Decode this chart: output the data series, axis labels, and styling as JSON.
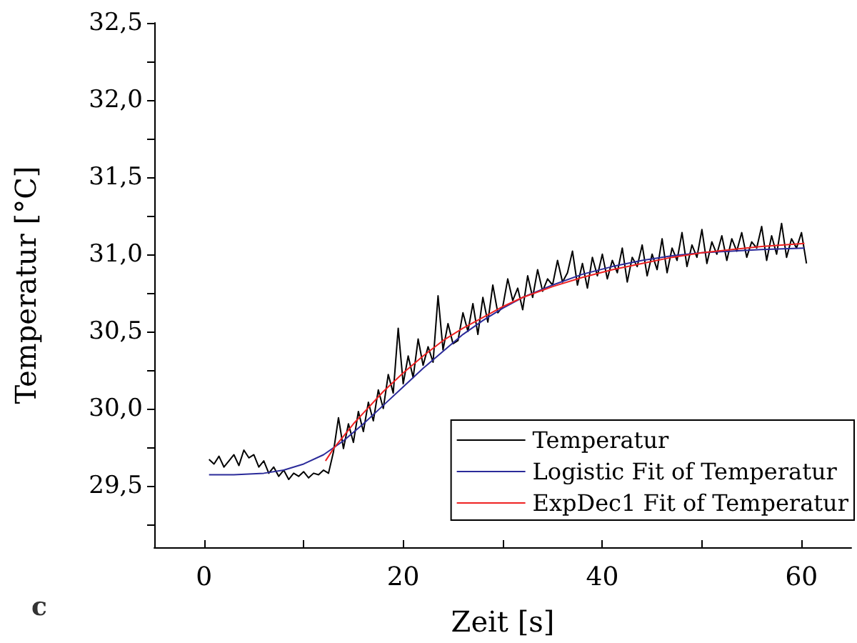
{
  "chart_data": {
    "type": "line",
    "xlabel": "Zeit [s]",
    "ylabel": "Temperatur [°C]",
    "annotations": [
      "c"
    ],
    "xlim": [
      -5,
      65
    ],
    "xticks": [
      0,
      {
        "value": 10,
        "label": null
      },
      20,
      {
        "value": 30,
        "label": null
      },
      40,
      {
        "value": 50,
        "label": null
      },
      60
    ],
    "ylim": [
      29.1,
      32.5
    ],
    "yticks": [
      {
        "value": 29.25,
        "label": null
      },
      {
        "value": 29.5,
        "label": "29,5"
      },
      {
        "value": 29.75,
        "label": null
      },
      {
        "value": 30.0,
        "label": "30,0"
      },
      {
        "value": 30.25,
        "label": null
      },
      {
        "value": 30.5,
        "label": "30,5"
      },
      {
        "value": 30.75,
        "label": null
      },
      {
        "value": 31.0,
        "label": "31,0"
      },
      {
        "value": 31.25,
        "label": null
      },
      {
        "value": 31.5,
        "label": "31,5"
      },
      {
        "value": 31.75,
        "label": null
      },
      {
        "value": 32.0,
        "label": "32,0"
      },
      {
        "value": 32.25,
        "label": null
      },
      {
        "value": 32.5,
        "label": "32,5"
      }
    ],
    "grid": false,
    "legend": "bottom right",
    "marker": "none",
    "line_style": "solid",
    "series": [
      {
        "name": "Temperatur",
        "color": "#000000",
        "x": [
          0.5,
          1,
          1.5,
          2,
          2.5,
          3,
          3.5,
          4,
          4.5,
          5,
          5.5,
          6,
          6.5,
          7,
          7.5,
          8,
          8.5,
          9,
          9.5,
          10,
          10.5,
          11,
          11.5,
          12,
          12.5,
          13,
          13.5,
          14,
          14.5,
          15,
          15.5,
          16,
          16.5,
          17,
          17.5,
          18,
          18.5,
          19,
          19.5,
          20,
          20.5,
          21,
          21.5,
          22,
          22.5,
          23,
          23.5,
          24,
          24.5,
          25,
          25.5,
          26,
          26.5,
          27,
          27.5,
          28,
          28.5,
          29,
          29.5,
          30,
          30.5,
          31,
          31.5,
          32,
          32.5,
          33,
          33.5,
          34,
          34.5,
          35,
          35.5,
          36,
          36.5,
          37,
          37.5,
          38,
          38.5,
          39,
          39.5,
          40,
          40.5,
          41,
          41.5,
          42,
          42.5,
          43,
          43.5,
          44,
          44.5,
          45,
          45.5,
          46,
          46.5,
          47,
          47.5,
          48,
          48.5,
          49,
          49.5,
          50,
          50.5,
          51,
          51.5,
          52,
          52.5,
          53,
          53.5,
          54,
          54.5,
          55,
          55.5,
          56,
          56.5,
          57,
          57.5,
          58,
          58.5,
          59,
          59.5,
          60,
          60.5
        ],
        "values": [
          29.67,
          29.64,
          29.69,
          29.62,
          29.66,
          29.7,
          29.63,
          29.73,
          29.68,
          29.7,
          29.62,
          29.66,
          29.58,
          29.62,
          29.56,
          29.6,
          29.54,
          29.58,
          29.56,
          29.59,
          29.55,
          29.58,
          29.57,
          29.6,
          29.58,
          29.72,
          29.94,
          29.74,
          29.9,
          29.78,
          29.98,
          29.85,
          30.04,
          29.92,
          30.12,
          30.0,
          30.22,
          30.1,
          30.52,
          30.16,
          30.34,
          30.2,
          30.45,
          30.28,
          30.4,
          30.3,
          30.73,
          30.38,
          30.55,
          30.42,
          30.44,
          30.62,
          30.5,
          30.68,
          30.48,
          30.72,
          30.56,
          30.8,
          30.62,
          30.66,
          30.84,
          30.7,
          30.78,
          30.64,
          30.86,
          30.72,
          30.9,
          30.76,
          30.84,
          30.8,
          30.96,
          30.82,
          30.88,
          31.02,
          30.8,
          30.94,
          30.78,
          30.98,
          30.86,
          31.0,
          30.84,
          30.96,
          30.88,
          31.04,
          30.82,
          30.98,
          30.92,
          31.06,
          30.86,
          31.0,
          30.9,
          31.1,
          30.88,
          31.04,
          30.96,
          31.14,
          30.92,
          31.06,
          30.98,
          31.16,
          30.94,
          31.08,
          31.0,
          31.12,
          30.96,
          31.1,
          31.02,
          31.14,
          30.98,
          31.08,
          31.04,
          31.18,
          30.96,
          31.12,
          31.0,
          31.2,
          30.98,
          31.1,
          31.04,
          31.14,
          30.94
        ]
      },
      {
        "name": "Logistic Fit of Temperatur",
        "color": "#2b2b9a",
        "x": [
          0.5,
          3,
          6,
          8,
          10,
          12,
          14,
          16,
          18,
          20,
          22,
          24,
          26,
          28,
          30,
          32,
          35,
          38,
          41,
          44,
          47,
          50,
          53,
          56,
          60.3
        ],
        "values": [
          29.57,
          29.57,
          29.58,
          29.6,
          29.64,
          29.7,
          29.79,
          29.9,
          30.02,
          30.14,
          30.26,
          30.37,
          30.48,
          30.57,
          30.65,
          30.72,
          30.8,
          30.87,
          30.92,
          30.96,
          30.99,
          31.01,
          31.02,
          31.03,
          31.04
        ]
      },
      {
        "name": "ExpDec1 Fit of Temperatur",
        "color": "#ee2222",
        "x": [
          12.2,
          13,
          14,
          15,
          16,
          18,
          20,
          22,
          24,
          26,
          28,
          30,
          32,
          35,
          38,
          41,
          44,
          47,
          50,
          53,
          56,
          60.3
        ],
        "values": [
          29.66,
          29.74,
          29.82,
          29.9,
          29.97,
          30.11,
          30.23,
          30.34,
          30.44,
          30.52,
          30.59,
          30.66,
          30.72,
          30.79,
          30.85,
          30.9,
          30.94,
          30.98,
          31.01,
          31.03,
          31.05,
          31.07
        ]
      }
    ]
  }
}
